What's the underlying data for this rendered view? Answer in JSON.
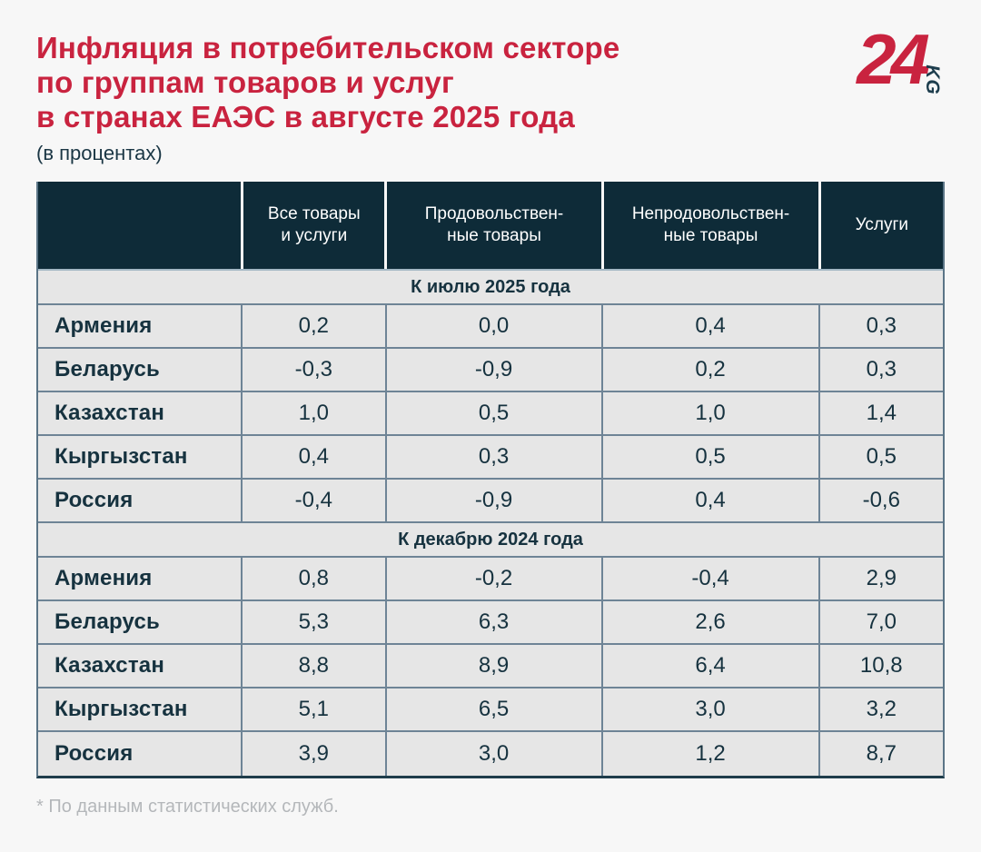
{
  "header": {
    "title_lines": [
      "Инфляция в потребительском секторе",
      "по группам товаров и услуг",
      "в странах ЕАЭС в августе 2025 года"
    ],
    "subtitle": "(в процентах)",
    "title_color": "#c9233f"
  },
  "logo": {
    "number": "24",
    "suffix": "KG"
  },
  "colors": {
    "page_bg": "#f7f7f7",
    "header_bg": "#0e2b38",
    "row_bg": "#e6e6e6",
    "separator": "#6e8496",
    "accent_red": "#c9233f",
    "text_navy": "#16323f"
  },
  "table": {
    "col_headers": [
      {
        "l1": "Все товары",
        "l2": "и услуги"
      },
      {
        "l1": "Продовольствен-",
        "l2": "ные товары"
      },
      {
        "l1": "Непродовольствен-",
        "l2": "ные товары"
      },
      {
        "l1": "Услуги",
        "l2": ""
      }
    ],
    "sections": [
      {
        "label": "К июлю 2025 года",
        "rows": [
          {
            "country": "Армения",
            "v": [
              "0,2",
              "0,0",
              "0,4",
              "0,3"
            ]
          },
          {
            "country": "Беларусь",
            "v": [
              "-0,3",
              "-0,9",
              "0,2",
              "0,3"
            ]
          },
          {
            "country": "Казахстан",
            "v": [
              "1,0",
              "0,5",
              "1,0",
              "1,4"
            ]
          },
          {
            "country": "Кыргызстан",
            "v": [
              "0,4",
              "0,3",
              "0,5",
              "0,5"
            ]
          },
          {
            "country": "Россия",
            "v": [
              "-0,4",
              "-0,9",
              "0,4",
              "-0,6"
            ]
          }
        ]
      },
      {
        "label": "К декабрю 2024 года",
        "rows": [
          {
            "country": "Армения",
            "v": [
              "0,8",
              "-0,2",
              "-0,4",
              "2,9"
            ]
          },
          {
            "country": "Беларусь",
            "v": [
              "5,3",
              "6,3",
              "2,6",
              "7,0"
            ]
          },
          {
            "country": "Казахстан",
            "v": [
              "8,8",
              "8,9",
              "6,4",
              "10,8"
            ]
          },
          {
            "country": "Кыргызстан",
            "v": [
              "5,1",
              "6,5",
              "3,0",
              "3,2"
            ]
          },
          {
            "country": "Россия",
            "v": [
              "3,9",
              "3,0",
              "1,2",
              "8,7"
            ]
          }
        ]
      }
    ]
  },
  "footer": {
    "note": "* По данным статистических служб."
  },
  "chart_data": {
    "type": "table",
    "title": "Инфляция в потребительском секторе по группам товаров и услуг в странах ЕАЭС в августе 2025 года",
    "unit": "в процентах",
    "columns": [
      "Все товары и услуги",
      "Продовольственные товары",
      "Непродовольственные товары",
      "Услуги"
    ],
    "sections": [
      {
        "label": "К июлю 2025 года",
        "rows": [
          {
            "country": "Армения",
            "values": [
              0.2,
              0.0,
              0.4,
              0.3
            ]
          },
          {
            "country": "Беларусь",
            "values": [
              -0.3,
              -0.9,
              0.2,
              0.3
            ]
          },
          {
            "country": "Казахстан",
            "values": [
              1.0,
              0.5,
              1.0,
              1.4
            ]
          },
          {
            "country": "Кыргызстан",
            "values": [
              0.4,
              0.3,
              0.5,
              0.5
            ]
          },
          {
            "country": "Россия",
            "values": [
              -0.4,
              -0.9,
              0.4,
              -0.6
            ]
          }
        ]
      },
      {
        "label": "К декабрю 2024 года",
        "rows": [
          {
            "country": "Армения",
            "values": [
              0.8,
              -0.2,
              -0.4,
              2.9
            ]
          },
          {
            "country": "Беларусь",
            "values": [
              5.3,
              6.3,
              2.6,
              7.0
            ]
          },
          {
            "country": "Казахстан",
            "values": [
              8.8,
              8.9,
              6.4,
              10.8
            ]
          },
          {
            "country": "Кыргызстан",
            "values": [
              5.1,
              6.5,
              3.0,
              3.2
            ]
          },
          {
            "country": "Россия",
            "values": [
              3.9,
              3.0,
              1.2,
              8.7
            ]
          }
        ]
      }
    ],
    "source_note": "* По данным статистических служб."
  }
}
